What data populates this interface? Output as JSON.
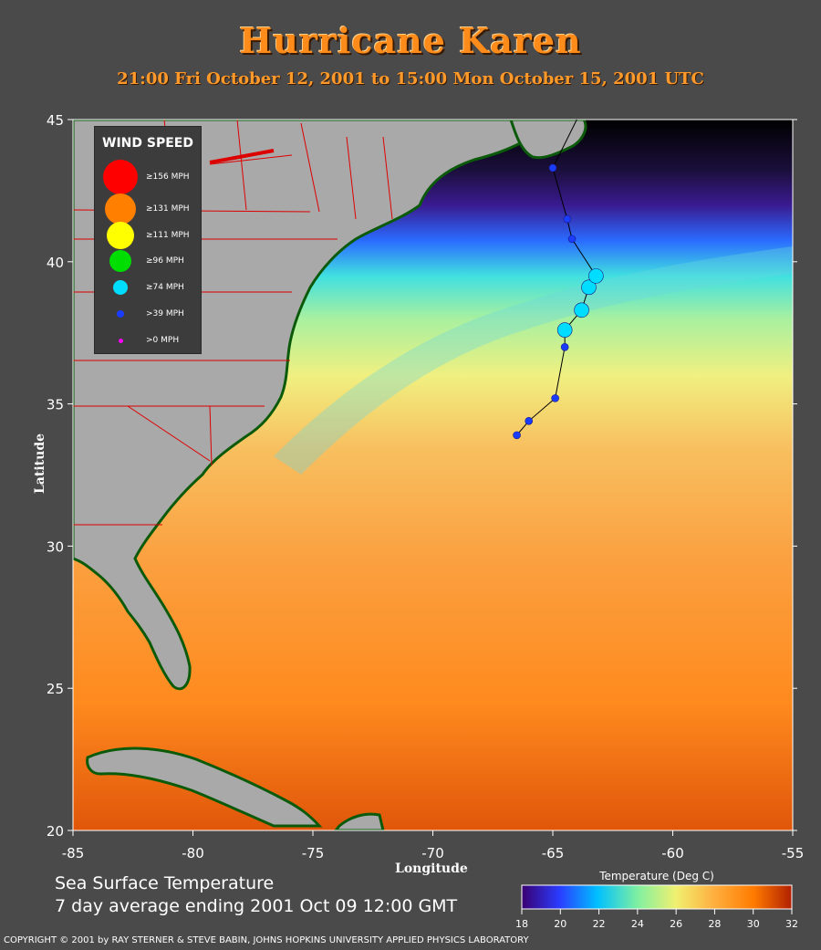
{
  "title": "Hurricane Karen",
  "subtitle": "21:00 Fri October 12, 2001 to 15:00 Mon October 15, 2001  UTC",
  "axes": {
    "x_label": "Longitude",
    "y_label": "Latitude",
    "x_ticks": [
      "-85",
      "-80",
      "-75",
      "-70",
      "-65",
      "-60",
      "-55"
    ],
    "y_ticks": [
      "45",
      "40",
      "35",
      "30",
      "25",
      "20"
    ]
  },
  "legend": {
    "title": "WIND SPEED",
    "items": [
      {
        "label": "≥156 MPH",
        "color": "#ff0000"
      },
      {
        "label": "≥131 MPH",
        "color": "#ff7f00"
      },
      {
        "label": "≥111 MPH",
        "color": "#ffff00"
      },
      {
        "label": "≥96 MPH",
        "color": "#00dd00"
      },
      {
        "label": "≥74 MPH",
        "color": "#00ddff"
      },
      {
        "label": ">39 MPH",
        "color": "#1a3cff"
      },
      {
        "label": ">0 MPH",
        "color": "#ff00ff"
      }
    ]
  },
  "sst": {
    "line1": "Sea Surface Temperature",
    "line2": "7 day average ending 2001 Oct 09 12:00 GMT"
  },
  "colorbar": {
    "title": "Temperature (Deg C)",
    "ticks": [
      "18",
      "20",
      "22",
      "24",
      "26",
      "28",
      "30",
      "32"
    ],
    "colors": [
      "#3a0070",
      "#2a3cff",
      "#00c0ff",
      "#80f0a0",
      "#f0f070",
      "#ffb040",
      "#ff7a00",
      "#b02000"
    ]
  },
  "track": [
    {
      "lon": -66.5,
      "lat": 33.9,
      "category": ">39 MPH"
    },
    {
      "lon": -66.0,
      "lat": 34.4,
      "category": ">39 MPH"
    },
    {
      "lon": -64.9,
      "lat": 35.2,
      "category": ">39 MPH"
    },
    {
      "lon": -64.5,
      "lat": 37.0,
      "category": ">39 MPH"
    },
    {
      "lon": -64.5,
      "lat": 37.6,
      "category": "≥74 MPH"
    },
    {
      "lon": -63.8,
      "lat": 38.3,
      "category": "≥74 MPH"
    },
    {
      "lon": -63.5,
      "lat": 39.1,
      "category": "≥74 MPH"
    },
    {
      "lon": -63.2,
      "lat": 39.5,
      "category": "≥74 MPH"
    },
    {
      "lon": -64.2,
      "lat": 40.8,
      "category": ">39 MPH"
    },
    {
      "lon": -64.4,
      "lat": 41.5,
      "category": ">39 MPH"
    },
    {
      "lon": -65.0,
      "lat": 43.3,
      "category": ">39 MPH"
    }
  ],
  "copyright": "COPYRIGHT © 2001 by RAY STERNER & STEVE BABIN, JOHNS HOPKINS UNIVERSITY APPLIED PHYSICS LABORATORY"
}
